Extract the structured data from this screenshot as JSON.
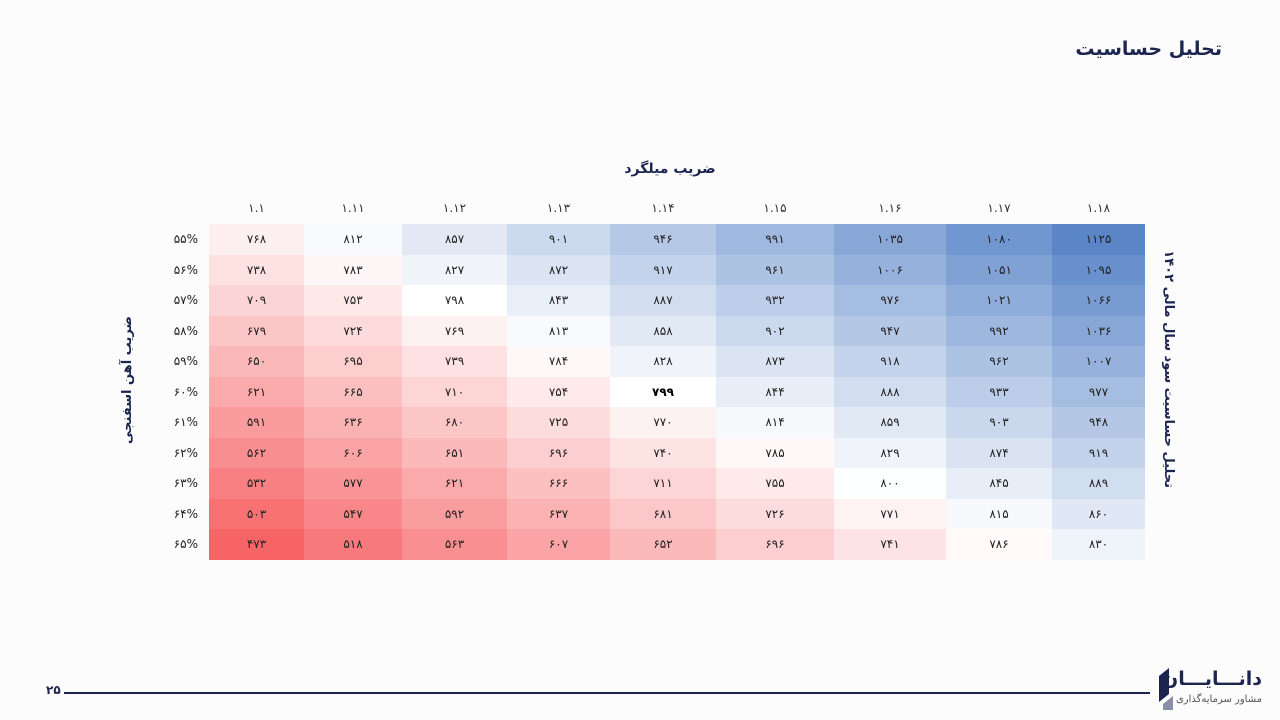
{
  "page": {
    "title": "تحلیل حساسیت",
    "page_number": "۲۵"
  },
  "logo": {
    "name": "دانـــایـــان",
    "tagline": "مشاور سرمایه‌گذاری"
  },
  "colors": {
    "low": "#f76466",
    "mid": "#ffffff",
    "high": "#5a86c8",
    "text": "#1b2550"
  },
  "chart_data": {
    "type": "heatmap",
    "xlabel": "ضریب میلگرد",
    "ylabel": "ضریب آهن اسفنجی",
    "zlabel": "تحلیل حساسیت سود سال مالی ۱۴۰۲",
    "x_tick_labels": [
      "۱.۱۸",
      "۱.۱۷",
      "۱.۱۶",
      "۱.۱۵",
      "۱.۱۴",
      "۱.۱۳",
      "۱.۱۲",
      "۱.۱۱",
      "۱.۱"
    ],
    "y_tick_labels": [
      "۵۵%",
      "۵۶%",
      "۵۷%",
      "۵۸%",
      "۵۹%",
      "۶۰%",
      "۶۱%",
      "۶۲%",
      "۶۳%",
      "۶۴%",
      "۶۵%"
    ],
    "x": [
      1.18,
      1.17,
      1.16,
      1.15,
      1.14,
      1.13,
      1.12,
      1.11,
      1.1
    ],
    "y": [
      0.55,
      0.56,
      0.57,
      0.58,
      0.59,
      0.6,
      0.61,
      0.62,
      0.63,
      0.64,
      0.65
    ],
    "values": [
      [
        1125,
        1080,
        1035,
        991,
        946,
        901,
        857,
        812,
        768
      ],
      [
        1095,
        1051,
        1006,
        961,
        917,
        872,
        827,
        783,
        738
      ],
      [
        1066,
        1021,
        976,
        932,
        887,
        843,
        798,
        753,
        709
      ],
      [
        1036,
        992,
        947,
        902,
        858,
        813,
        769,
        724,
        679
      ],
      [
        1007,
        962,
        918,
        873,
        828,
        784,
        739,
        695,
        650
      ],
      [
        977,
        933,
        888,
        844,
        799,
        754,
        710,
        665,
        621
      ],
      [
        948,
        903,
        859,
        814,
        770,
        725,
        680,
        636,
        591
      ],
      [
        919,
        874,
        829,
        785,
        740,
        696,
        651,
        606,
        562
      ],
      [
        889,
        845,
        800,
        755,
        711,
        666,
        621,
        577,
        532
      ],
      [
        860,
        815,
        771,
        726,
        681,
        637,
        592,
        547,
        503
      ],
      [
        830,
        786,
        741,
        696,
        652,
        607,
        563,
        518,
        473
      ]
    ],
    "base_case": {
      "x": 1.14,
      "y": 0.6,
      "value": 799
    },
    "value_range": [
      473,
      1125
    ]
  }
}
